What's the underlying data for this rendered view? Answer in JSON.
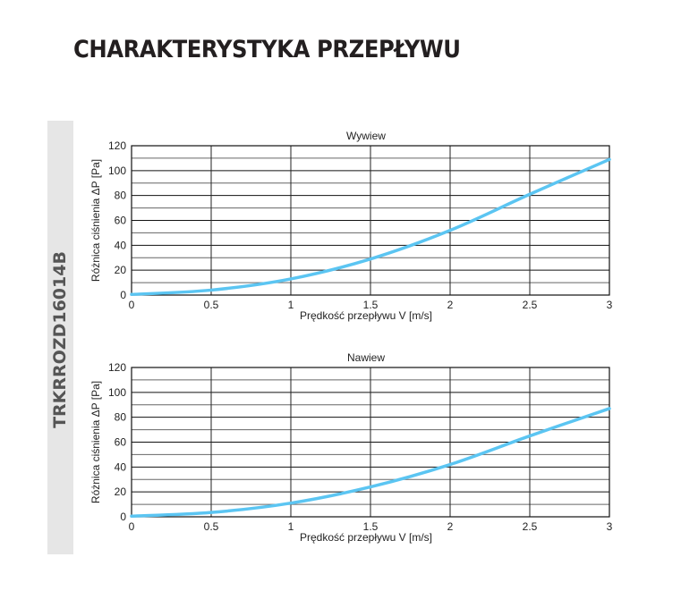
{
  "page_title": "CHARAKTERYSTYKA PRZEPŁYWU",
  "product_code": "TRKRROZD16014B",
  "curve_color": "#5bc5f2",
  "chart_data": [
    {
      "type": "line",
      "title": "Wywiew",
      "xlabel": "Prędkość przepływu V [m/s]",
      "ylabel": "Różnica ciśnienia ΔP [Pa]",
      "xlim": [
        0,
        3
      ],
      "ylim": [
        0,
        120
      ],
      "xticks": [
        "0",
        "0.5",
        "1",
        "1.5",
        "2",
        "2.5",
        "3"
      ],
      "yticks": [
        "0",
        "20",
        "40",
        "60",
        "80",
        "100",
        "120"
      ],
      "grid": true,
      "x": [
        0,
        0.5,
        1,
        1.5,
        2,
        2.5,
        3
      ],
      "y": [
        0.5,
        4,
        13,
        29,
        52,
        81,
        109
      ]
    },
    {
      "type": "line",
      "title": "Nawiew",
      "xlabel": "Prędkość przepływu V [m/s]",
      "ylabel": "Różnica ciśnienia ΔP [Pa]",
      "xlim": [
        0,
        3
      ],
      "ylim": [
        0,
        120
      ],
      "xticks": [
        "0",
        "0.5",
        "1",
        "1.5",
        "2",
        "2.5",
        "3"
      ],
      "yticks": [
        "0",
        "20",
        "40",
        "60",
        "80",
        "100",
        "120"
      ],
      "grid": true,
      "x": [
        0,
        0.5,
        1,
        1.5,
        2,
        2.5,
        3
      ],
      "y": [
        0.5,
        3.5,
        11,
        24,
        42,
        65,
        87
      ]
    }
  ]
}
